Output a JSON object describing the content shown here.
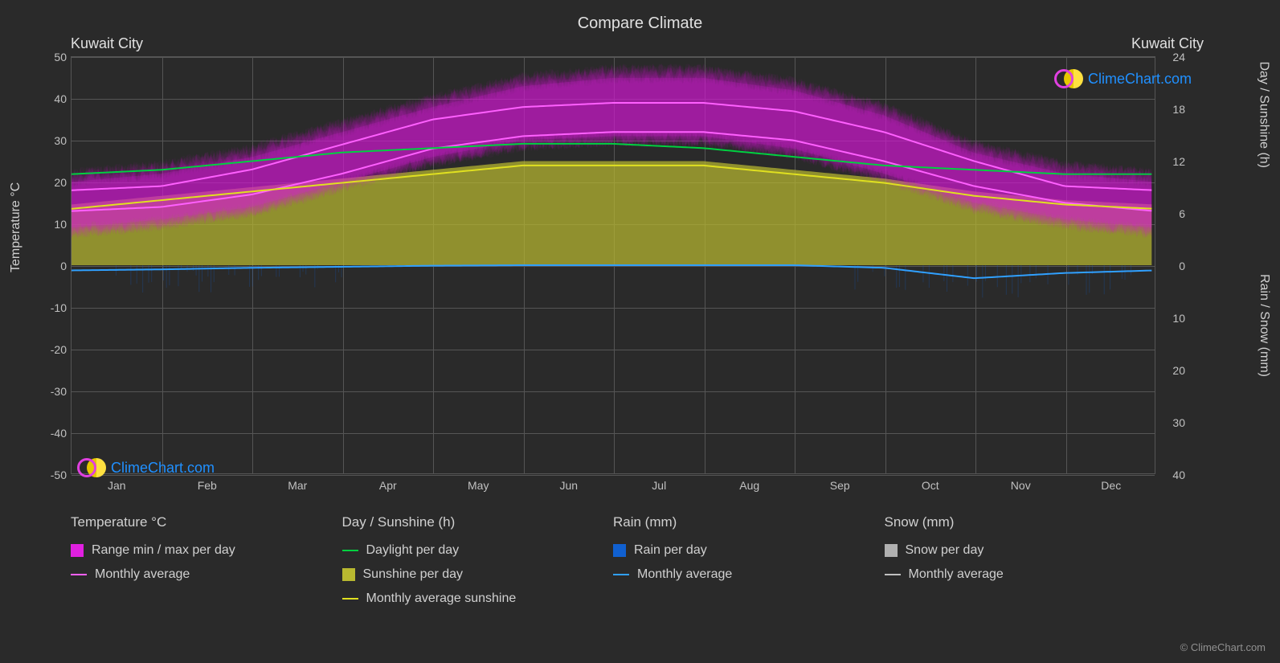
{
  "title": "Compare Climate",
  "cityLeft": "Kuwait City",
  "cityRight": "Kuwait City",
  "months": [
    "Jan",
    "Feb",
    "Mar",
    "Apr",
    "May",
    "Jun",
    "Jul",
    "Aug",
    "Sep",
    "Oct",
    "Nov",
    "Dec"
  ],
  "leftAxis": {
    "label": "Temperature °C",
    "min": -50,
    "max": 50,
    "step": 10,
    "ticks": [
      50,
      40,
      30,
      20,
      10,
      0,
      -10,
      -20,
      -30,
      -40,
      -50
    ]
  },
  "rightAxisTop": {
    "label": "Day / Sunshine (h)",
    "ticks": [
      24,
      18,
      12,
      6,
      0
    ],
    "min": 0,
    "max": 24
  },
  "rightAxisBottom": {
    "label": "Rain / Snow (mm)",
    "ticks": [
      10,
      20,
      30,
      40
    ],
    "min": 0,
    "max": 40
  },
  "colors": {
    "background": "#2a2a2a",
    "grid": "#555555",
    "text": "#d0d0d0",
    "magenta": "#e020e0",
    "magentaLine": "#ff60ff",
    "green": "#00d040",
    "yellowFill": "#b8b830",
    "yellowLine": "#e0e020",
    "blueFill": "#1060d0",
    "blueLine": "#30a0ff",
    "grayFill": "#b0b0b0",
    "grayLine": "#c0c0c0",
    "logoBlue": "#2090ff"
  },
  "series": {
    "tempMax": [
      20,
      22,
      26,
      32,
      38,
      43,
      45,
      45,
      42,
      36,
      27,
      22
    ],
    "tempMin": [
      9,
      11,
      14,
      20,
      26,
      30,
      31,
      31,
      28,
      22,
      15,
      11
    ],
    "tempAvgHigh": [
      18,
      19,
      23,
      29,
      35,
      38,
      39,
      39,
      37,
      32,
      25,
      19
    ],
    "tempAvgLow": [
      13,
      14,
      17,
      22,
      28,
      31,
      32,
      32,
      30,
      25,
      19,
      15
    ],
    "daylight": [
      10.5,
      11,
      12,
      13,
      13.5,
      14,
      14,
      13.5,
      12.5,
      11.5,
      11,
      10.5
    ],
    "sunshineMax": [
      7,
      8,
      9,
      10,
      11,
      12,
      12,
      12,
      11,
      10,
      8.5,
      7.5
    ],
    "sunshineAvg": [
      6.5,
      7.5,
      8.5,
      9.5,
      10.5,
      11.5,
      11.5,
      11.5,
      10.5,
      9.5,
      8,
      7
    ],
    "rainAvg": [
      1,
      0.8,
      0.5,
      0.3,
      0.1,
      0,
      0,
      0,
      0,
      0.5,
      2.5,
      1.5
    ]
  },
  "legend": {
    "temp": {
      "header": "Temperature °C",
      "items": [
        {
          "type": "box",
          "color": "#e020e0",
          "label": "Range min / max per day"
        },
        {
          "type": "line",
          "color": "#ff60ff",
          "label": "Monthly average"
        }
      ]
    },
    "day": {
      "header": "Day / Sunshine (h)",
      "items": [
        {
          "type": "line",
          "color": "#00d040",
          "label": "Daylight per day"
        },
        {
          "type": "box",
          "color": "#b8b830",
          "label": "Sunshine per day"
        },
        {
          "type": "line",
          "color": "#e0e020",
          "label": "Monthly average sunshine"
        }
      ]
    },
    "rain": {
      "header": "Rain (mm)",
      "items": [
        {
          "type": "box",
          "color": "#1060d0",
          "label": "Rain per day"
        },
        {
          "type": "line",
          "color": "#30a0ff",
          "label": "Monthly average"
        }
      ]
    },
    "snow": {
      "header": "Snow (mm)",
      "items": [
        {
          "type": "box",
          "color": "#b0b0b0",
          "label": "Snow per day"
        },
        {
          "type": "line",
          "color": "#c0c0c0",
          "label": "Monthly average"
        }
      ]
    }
  },
  "logoText": "ClimeChart.com",
  "copyright": "© ClimeChart.com"
}
